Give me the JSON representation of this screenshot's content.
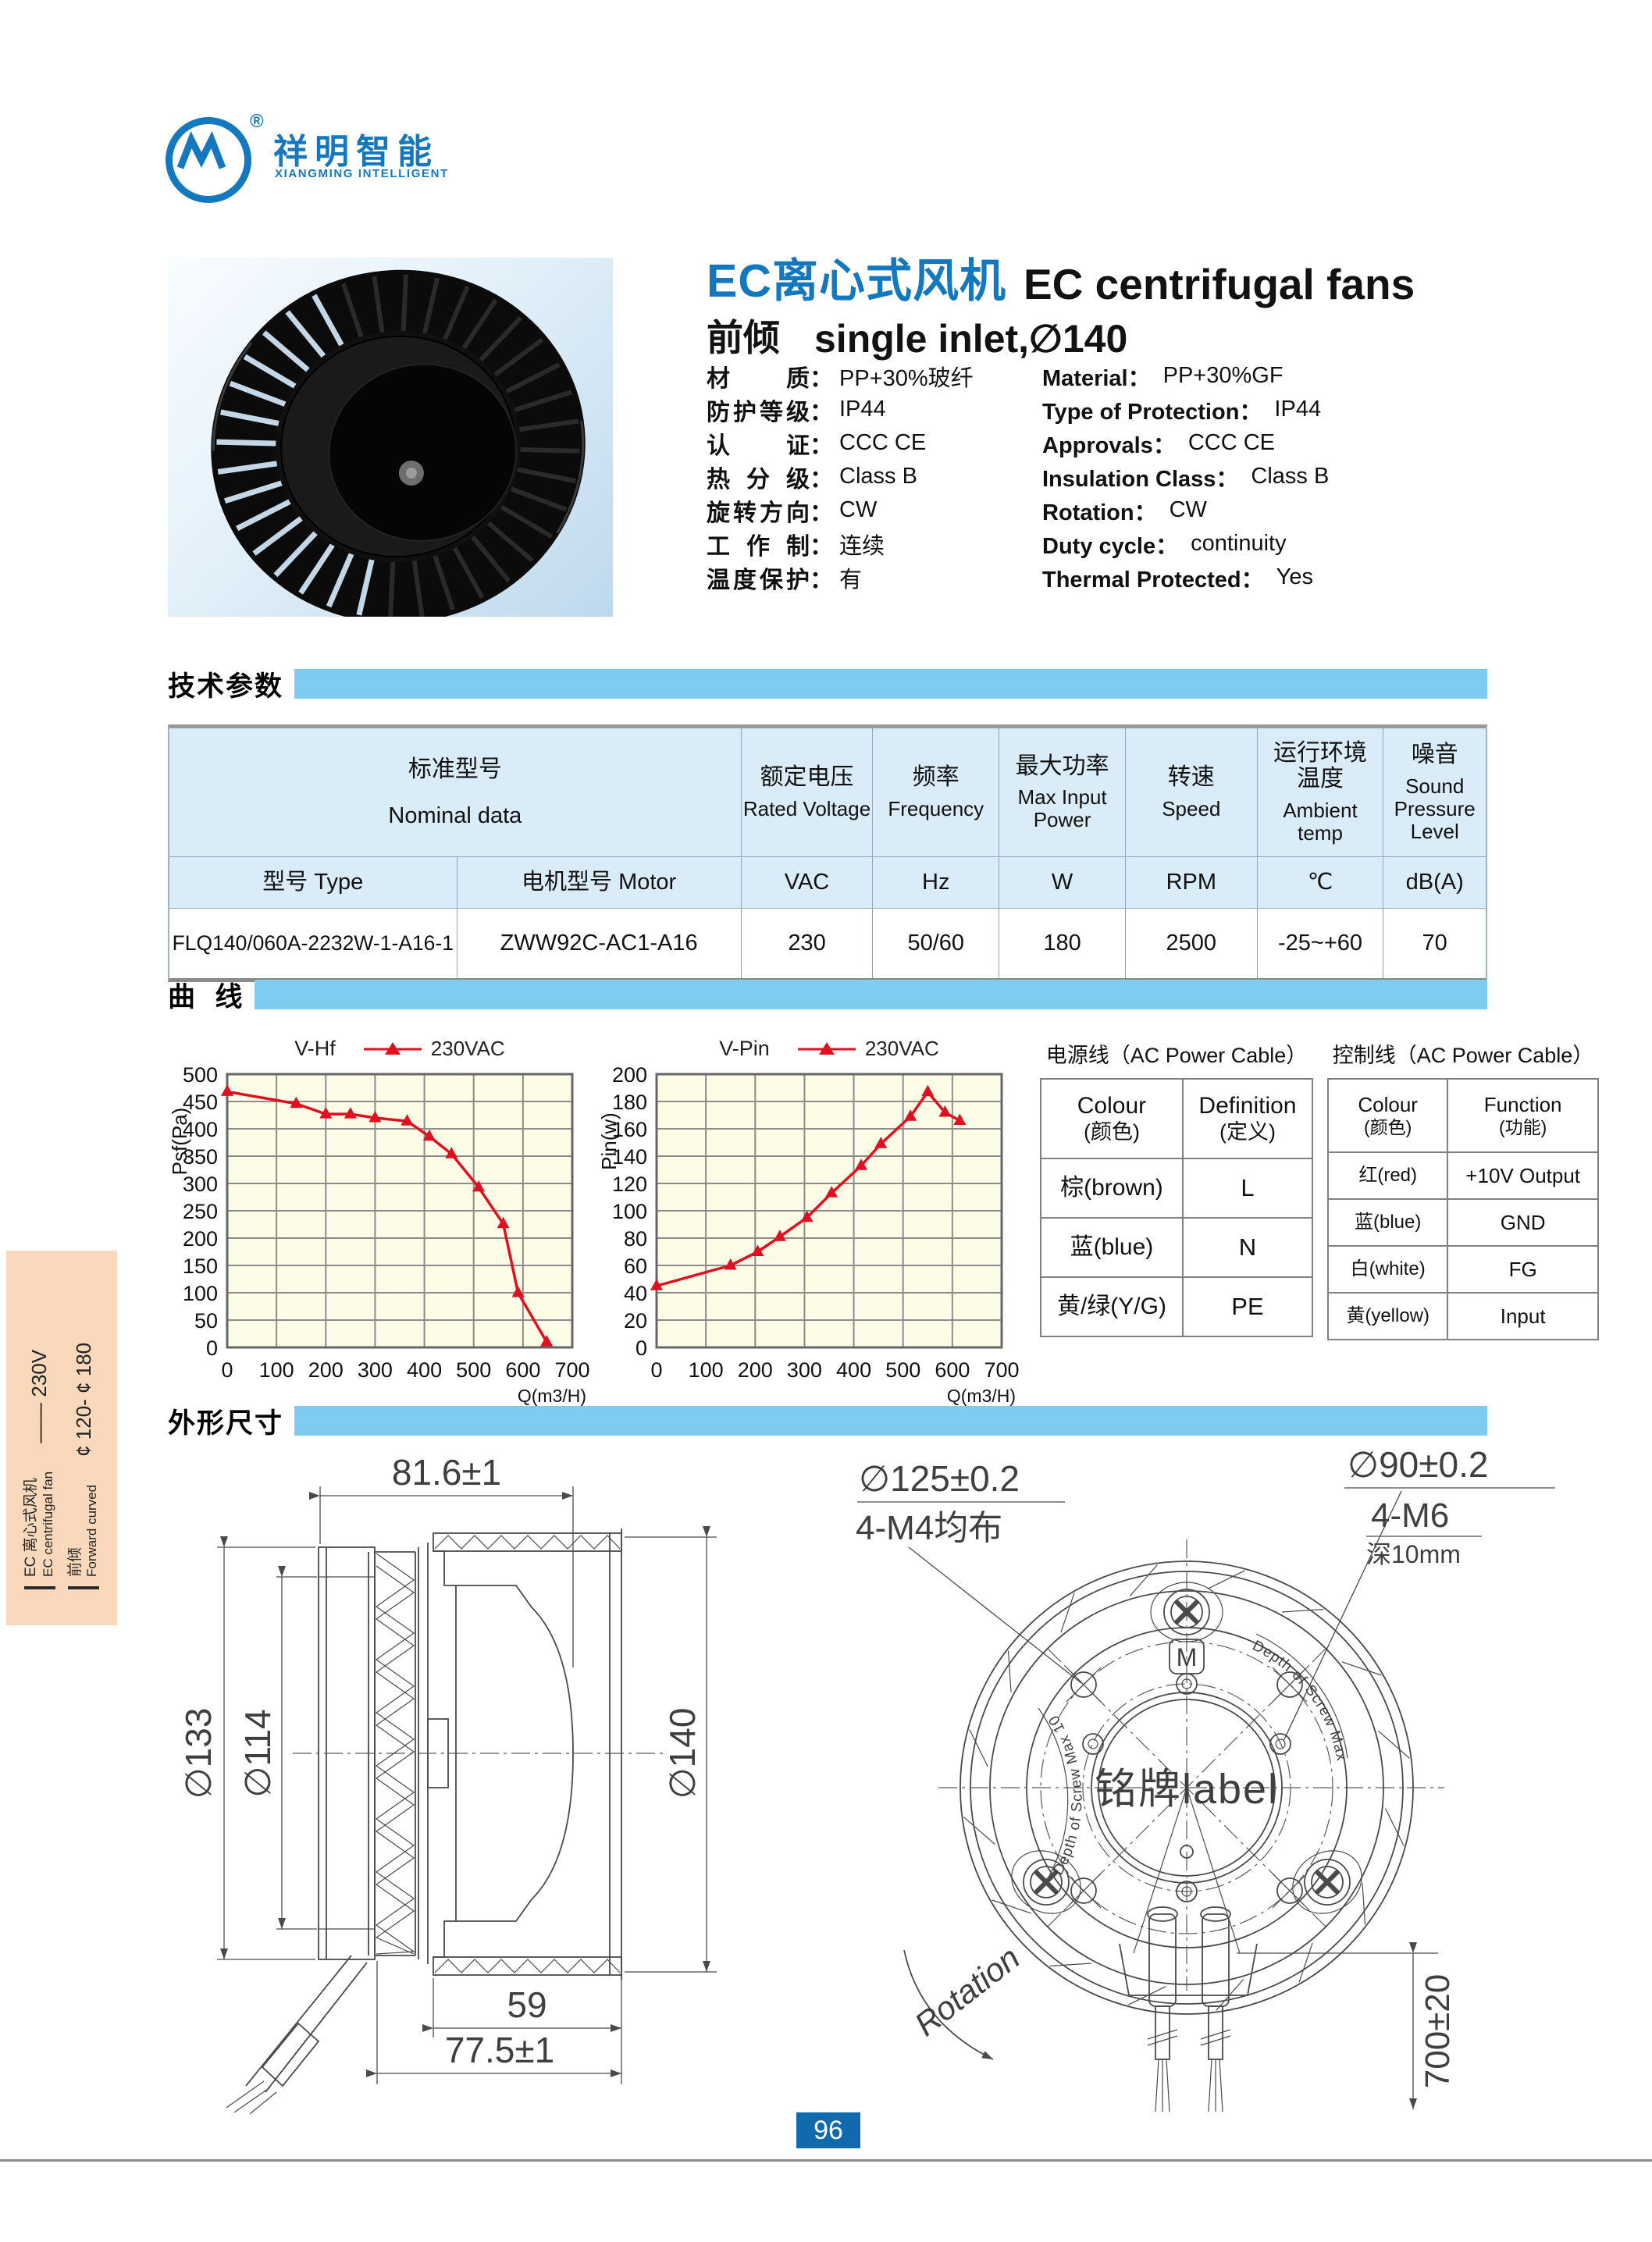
{
  "strings": {
    "colon": "："
  },
  "colors": {
    "brand_blue": "#1478BE",
    "accent_bar": "#7ECDF0",
    "table_header_bg": "#D9ECF8",
    "page_number_bg": "#1169AE",
    "sidebar_bg": "#FAD8BC",
    "chart_bg": "#FDFCE6",
    "series_red": "#E01020",
    "grid_gray": "#8C8C8C"
  },
  "logo": {
    "cn": "祥明智能",
    "en": "XIANGMING INTELLIGENT",
    "reg": "®",
    "monogram": "M"
  },
  "header": {
    "title_cn": "EC离心式风机",
    "title_en": "EC centrifugal fans",
    "subtitle_cn": "前倾",
    "subtitle_en": "single inlet,∅140"
  },
  "specs": [
    {
      "cl": "材质",
      "cv": "PP+30%玻纤",
      "el": "Material：",
      "ev": "PP+30%GF"
    },
    {
      "cl": "防护等级",
      "cv": "IP44",
      "el": "Type of Protection：",
      "ev": "IP44"
    },
    {
      "cl": "认证",
      "cv": "CCC CE",
      "el": "Approvals：",
      "ev": "CCC CE"
    },
    {
      "cl": "热分级",
      "cv": "Class B",
      "el": "Insulation Class：",
      "ev": "Class B"
    },
    {
      "cl": "旋转方向",
      "cv": "CW",
      "el": "Rotation：",
      "ev": "CW"
    },
    {
      "cl": "工作制",
      "cv": "连续",
      "el": "Duty cycle：",
      "ev": "continuity"
    },
    {
      "cl": "温度保护",
      "cv": "有",
      "el": "Thermal Protected：",
      "ev": "Yes"
    }
  ],
  "sections": {
    "tech": "技术参数",
    "curve": "曲  线",
    "dims": "外形尺寸"
  },
  "tech_table": {
    "nominal_cn": "标准型号",
    "nominal_en": "Nominal data",
    "cols": [
      {
        "cn": "额定电压",
        "cn2": "",
        "en": "Rated Voltage"
      },
      {
        "cn": "频率",
        "cn2": "",
        "en": "Frequency"
      },
      {
        "cn": "最大功率",
        "cn2": "",
        "en": "Max Input Power"
      },
      {
        "cn": "转速",
        "cn2": "",
        "en": "Speed"
      },
      {
        "cn": "运行环境",
        "cn2": "温度",
        "en": "Ambient temp"
      },
      {
        "cn": "噪音",
        "cn2": "",
        "en": "Sound Pressure Level"
      }
    ],
    "sub": [
      "型号 Type",
      "电机型号 Motor",
      "VAC",
      "Hz",
      "W",
      "RPM",
      "℃",
      "dB(A)"
    ],
    "row": [
      "FLQ140/060A-2232W-1-A16-1",
      "ZWW92C-AC1-A16",
      "230",
      "50/60",
      "180",
      "2500",
      "-25~+60",
      "70"
    ]
  },
  "chart_data": [
    {
      "type": "line",
      "title": "V-Hf",
      "legend": "230VAC",
      "xlabel": "Q(m3/H)",
      "ylabel": "Psf(Pa)",
      "xlim": [
        0,
        700
      ],
      "ylim": [
        0,
        500
      ],
      "xtick": 100,
      "ytick": 50,
      "grid": true,
      "legend_position": "top",
      "color": "#E01020",
      "x": [
        0,
        140,
        200,
        250,
        300,
        365,
        410,
        455,
        510,
        560,
        590,
        648
      ],
      "y": [
        468,
        446,
        427,
        427,
        420,
        414,
        386,
        354,
        293,
        226,
        100,
        10
      ]
    },
    {
      "type": "line",
      "title": "V-Pin",
      "legend": "230VAC",
      "xlabel": "Q(m3/H)",
      "ylabel": "Pin(w)",
      "xlim": [
        0,
        700
      ],
      "ylim": [
        0,
        200
      ],
      "xtick": 100,
      "ytick": 20,
      "grid": true,
      "legend_position": "top",
      "color": "#E01020",
      "x": [
        0,
        150,
        205,
        250,
        305,
        355,
        415,
        455,
        515,
        550,
        585,
        615
      ],
      "y": [
        45,
        60,
        70,
        81,
        95,
        113,
        133,
        149,
        169,
        187,
        172,
        166
      ]
    }
  ],
  "cables": [
    {
      "title": "电源线（AC Power Cable）",
      "headers": [
        {
          "t": "Colour",
          "s": "(颜色)"
        },
        {
          "t": "Definition",
          "s": "(定义)"
        }
      ],
      "rows": [
        [
          "棕(brown)",
          "L"
        ],
        [
          "蓝(blue)",
          "N"
        ],
        [
          "黄/绿(Y/G)",
          "PE"
        ]
      ]
    },
    {
      "title": "控制线（AC Power Cable）",
      "headers": [
        {
          "t": "Colour",
          "s": "(颜色)"
        },
        {
          "t": "Function",
          "s": "(功能)"
        }
      ],
      "rows": [
        [
          "红(red)",
          "+10V Output"
        ],
        [
          "蓝(blue)",
          "GND"
        ],
        [
          "白(white)",
          "FG"
        ],
        [
          "黄(yellow)",
          "Input"
        ]
      ]
    }
  ],
  "drawing": {
    "top_width": "81.6±1",
    "dia_outer": "∅133",
    "dia_inner": "∅114",
    "dia_right": "∅140",
    "bottom_inner": "59",
    "bottom_total": "77.5±1",
    "bolt_circle_1": "∅125±0.2",
    "bolt_note_1": "4-M4均布",
    "bolt_circle_2": "∅90±0.2",
    "bolt_note_2": "4-M6",
    "bolt_depth_2": "深10mm",
    "nameplate": "铭牌label",
    "rotation": "Rotation",
    "cable_len": "700±20",
    "screw_left": "Depth of Screw Max 10mm",
    "screw_right": "Depth of Screw Max 5mm"
  },
  "sidebar": {
    "line1_cn": "EC 离心式风机",
    "line1_en": "EC centrifugal fan",
    "line1_tag": "—— 230V",
    "line2_cn": "前倾",
    "line2_en": "Forward curved",
    "line2_tag": "¢ 120- ¢ 180"
  },
  "page": {
    "number": "96"
  }
}
